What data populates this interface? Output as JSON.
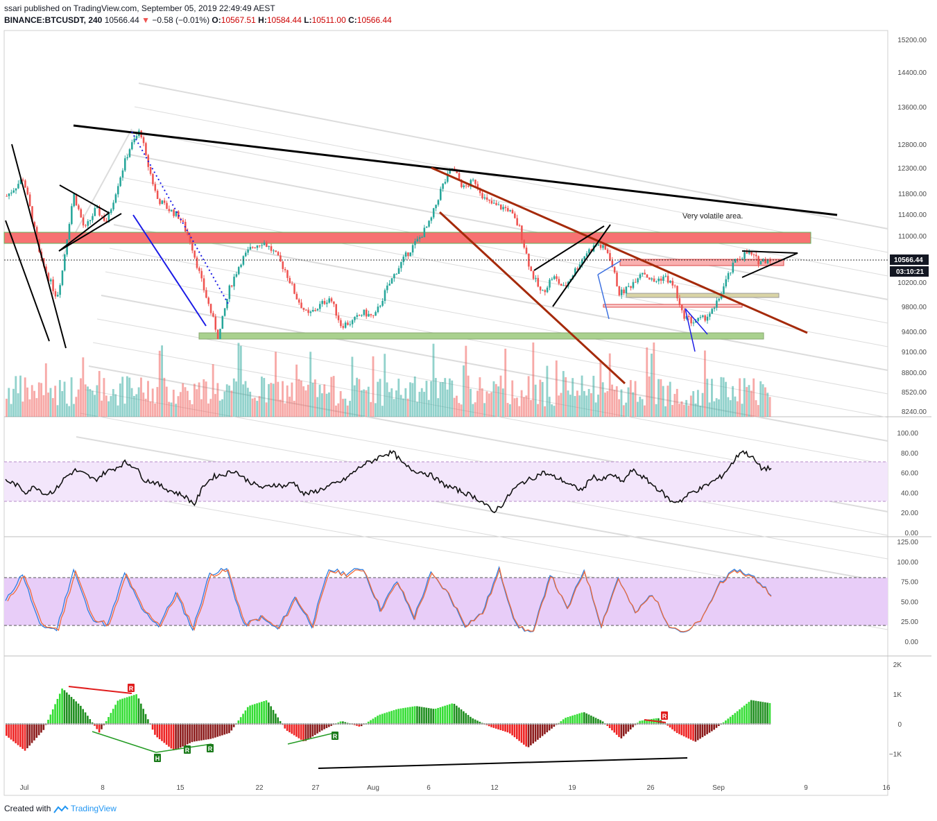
{
  "header": {
    "line1": "ssari published on TradingView.com, September 05, 2019 22:49:49 AEST",
    "symbol": "BINANCE:BTCUSDT, 240",
    "last": "10566.44",
    "change_arrow": "▼",
    "change": "−0.58 (−0.01%)",
    "open_label": "O:",
    "open": "10567.51",
    "high_label": "H:",
    "high": "10584.44",
    "low_label": "L:",
    "low": "10511.00",
    "close_label": "C:",
    "close": "10566.44"
  },
  "footer": {
    "created_with": "Created with",
    "brand": "TradingView"
  },
  "colors": {
    "bull": "#26a69a",
    "bear": "#ef5350",
    "resistance_zone": "#f77272",
    "support_zone": "#a9d18e",
    "rsi_band": "#f3e6fb",
    "stoch_band": "#e8cdf8",
    "trend_brown": "#a52a0a",
    "trend_black": "#000000",
    "trend_blue": "#1a1ae6",
    "momentum_up": "#33cc33",
    "momentum_down": "#e01c1c"
  },
  "icons": [
    "tradingview-logo-icon",
    "bearish-divergence-label-icon",
    "bullish-divergence-label-icon"
  ],
  "chart_data": {
    "type": "candlestick",
    "title": "BINANCE:BTCUSDT, 240",
    "xlabel": "",
    "ylabel": "",
    "x_ticks": [
      "Jul",
      "8",
      "15",
      "22",
      "27",
      "Aug",
      "6",
      "12",
      "19",
      "26",
      "Sep",
      "9",
      "16"
    ],
    "price_axis": {
      "ticks": [
        "15200.00",
        "14400.00",
        "13600.00",
        "12800.00",
        "12300.00",
        "11800.00",
        "11400.00",
        "11000.00",
        "10200.00",
        "9800.00",
        "9400.00",
        "9100.00",
        "8800.00",
        "8520.00",
        "8240.00"
      ],
      "scale": "log",
      "last_price_label": "10566.44",
      "countdown_label": "03:10:21"
    },
    "price_path": [
      [
        0,
        11750
      ],
      [
        3,
        12100
      ],
      [
        6,
        10600
      ],
      [
        9,
        9950
      ],
      [
        10,
        10400
      ],
      [
        12,
        11800
      ],
      [
        14,
        11100
      ],
      [
        16,
        11500
      ],
      [
        18,
        11250
      ],
      [
        20,
        12000
      ],
      [
        22,
        12700
      ],
      [
        24,
        13100
      ],
      [
        25,
        12500
      ],
      [
        27,
        11700
      ],
      [
        29,
        11500
      ],
      [
        31,
        11350
      ],
      [
        33,
        10900
      ],
      [
        35,
        10200
      ],
      [
        37,
        9600
      ],
      [
        38,
        9300
      ],
      [
        40,
        10100
      ],
      [
        42,
        10550
      ],
      [
        44,
        10800
      ],
      [
        46,
        10900
      ],
      [
        48,
        10700
      ],
      [
        50,
        10400
      ],
      [
        52,
        9950
      ],
      [
        54,
        9650
      ],
      [
        56,
        9800
      ],
      [
        58,
        9950
      ],
      [
        60,
        9500
      ],
      [
        62,
        9550
      ],
      [
        64,
        9700
      ],
      [
        66,
        9620
      ],
      [
        68,
        10050
      ],
      [
        70,
        10400
      ],
      [
        72,
        10700
      ],
      [
        74,
        10950
      ],
      [
        76,
        11250
      ],
      [
        78,
        11900
      ],
      [
        80,
        12300
      ],
      [
        82,
        11900
      ],
      [
        84,
        12050
      ],
      [
        86,
        11650
      ],
      [
        88,
        11550
      ],
      [
        90,
        11500
      ],
      [
        92,
        11150
      ],
      [
        94,
        10400
      ],
      [
        96,
        10000
      ],
      [
        98,
        10300
      ],
      [
        100,
        10100
      ],
      [
        102,
        10400
      ],
      [
        104,
        10700
      ],
      [
        106,
        10850
      ],
      [
        108,
        10700
      ],
      [
        110,
        10000
      ],
      [
        112,
        10150
      ],
      [
        114,
        10400
      ],
      [
        116,
        10200
      ],
      [
        118,
        10300
      ],
      [
        120,
        10100
      ],
      [
        121,
        9700
      ],
      [
        123,
        9550
      ],
      [
        125,
        9600
      ],
      [
        127,
        9750
      ],
      [
        129,
        10200
      ],
      [
        131,
        10600
      ],
      [
        133,
        10700
      ],
      [
        135,
        10550
      ],
      [
        137,
        10600
      ]
    ],
    "volume_profile": "per-candle histogram, bull/bear colored",
    "annotations": {
      "note": "Very volatile area."
    },
    "rsi": {
      "ticks": [
        "100.00",
        "80.00",
        "60.00",
        "40.00",
        "20.00",
        "0.00"
      ],
      "band": [
        30,
        70
      ],
      "series": [
        52,
        48,
        40,
        46,
        38,
        42,
        55,
        62,
        58,
        52,
        60,
        64,
        70,
        66,
        52,
        50,
        44,
        40,
        36,
        28,
        48,
        56,
        58,
        62,
        54,
        48,
        44,
        48,
        46,
        50,
        38,
        40,
        44,
        48,
        52,
        60,
        68,
        72,
        78,
        80,
        68,
        62,
        60,
        56,
        48,
        44,
        40,
        36,
        30,
        20,
        28,
        42,
        50,
        54,
        60,
        56,
        52,
        46,
        42,
        56,
        52,
        58,
        50,
        62,
        56,
        48,
        40,
        30,
        32,
        40,
        44,
        50,
        56,
        68,
        82,
        76,
        64,
        64
      ]
    },
    "stoch": {
      "ticks": [
        "125.00",
        "100.00",
        "75.00",
        "50.00",
        "25.00",
        "0.00"
      ],
      "band": [
        20,
        80
      ],
      "series": [
        50,
        85,
        20,
        15,
        90,
        30,
        20,
        85,
        40,
        20,
        60,
        15,
        85,
        90,
        20,
        30,
        15,
        55,
        20,
        90,
        85,
        92,
        40,
        75,
        30,
        85,
        60,
        20,
        35,
        90,
        20,
        10,
        85,
        40,
        90,
        20,
        80,
        35,
        60,
        20,
        10,
        30,
        75,
        90,
        80,
        60
      ]
    },
    "momentum_osc": {
      "ticks": [
        "2K",
        "1K",
        "0",
        "−1K"
      ],
      "series": [
        -0.4,
        -0.9,
        -0.2,
        1.2,
        0.6,
        -0.3,
        0.8,
        1.0,
        -0.4,
        -0.9,
        -0.6,
        -0.5,
        -0.3,
        0.6,
        0.8,
        -0.2,
        -0.6,
        -0.2,
        0.1,
        -0.1,
        0.3,
        0.5,
        0.6,
        0.5,
        0.7,
        0.2,
        -0.1,
        -0.3,
        -0.8,
        -0.3,
        0.2,
        0.4,
        0.1,
        -0.5,
        0.1,
        0.2,
        -0.3,
        -0.6,
        -0.2,
        0.3,
        0.8,
        0.7
      ],
      "divergence_labels": [
        "R",
        "H",
        "R",
        "R",
        "R",
        "R"
      ]
    }
  }
}
